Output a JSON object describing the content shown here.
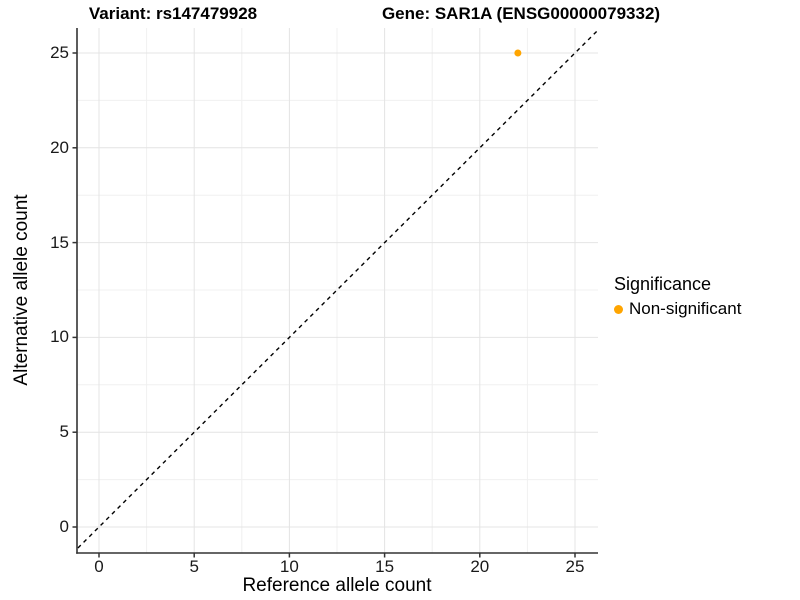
{
  "header": {
    "variant_title": "Variant: rs147479928",
    "gene_title": "Gene: SAR1A (ENSG00000079332)"
  },
  "chart_data": {
    "type": "scatter",
    "title": "Variant: rs147479928   Gene: SAR1A (ENSG00000079332)",
    "xlabel": "Reference allele count",
    "ylabel": "Alternative allele count",
    "xlim": [
      -1.25,
      26.25
    ],
    "ylim": [
      -1.25,
      26.25
    ],
    "x_ticks": [
      0,
      5,
      10,
      15,
      20,
      25
    ],
    "y_ticks": [
      0,
      5,
      10,
      15,
      20,
      25
    ],
    "x_minor_ticks": [
      2.5,
      7.5,
      12.5,
      17.5,
      22.5
    ],
    "y_minor_ticks": [
      2.5,
      7.5,
      12.5,
      17.5,
      22.5
    ],
    "x_tick_labels": [
      "0",
      "5",
      "10",
      "15",
      "20",
      "25"
    ],
    "y_tick_labels": [
      "0",
      "5",
      "10",
      "15",
      "20",
      "25"
    ],
    "grid": true,
    "series": [
      {
        "name": "Non-significant",
        "color": "#FFA500",
        "points": [
          {
            "x": 22,
            "y": 25
          }
        ]
      }
    ],
    "reference_line": {
      "kind": "identity y=x",
      "style": "dashed",
      "color": "#000000"
    },
    "legend_position": "right"
  },
  "axes": {
    "x_title": "Reference allele count",
    "y_title": "Alternative allele count"
  },
  "legend": {
    "title": "Significance",
    "items": [
      {
        "label": "Non-significant",
        "color": "#FFA500"
      }
    ]
  },
  "colors": {
    "point": "#FFA500",
    "grid_major": "#E4E4E4",
    "grid_minor": "#F0F0F0",
    "axis_line": "#333333",
    "tick_mark": "#333333",
    "reference_line": "#000000",
    "background": "#FFFFFF"
  }
}
